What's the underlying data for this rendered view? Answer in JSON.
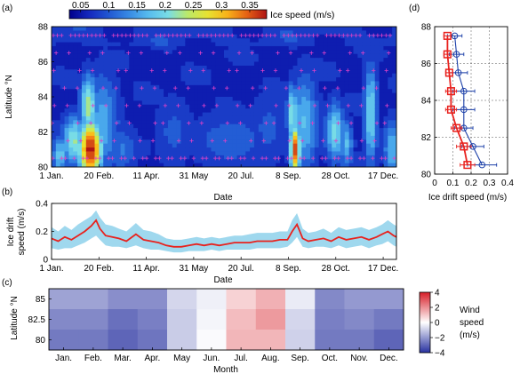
{
  "panels": {
    "a": "(a)",
    "b": "(b)",
    "c": "(c)",
    "d": "(d)"
  },
  "colorbar_top": {
    "label": "Ice speed (m/s)",
    "ticks": [
      "0.05",
      "0.1",
      "0.15",
      "0.2",
      "0.25",
      "0.3",
      "0.35"
    ]
  },
  "colorbar_wind": {
    "label_lines": [
      "Wind",
      "speed",
      "(m/s)"
    ],
    "ticks": [
      "4",
      "2",
      "0",
      "−2",
      "−4"
    ]
  },
  "colors": {
    "line_red": "#e8221e",
    "band_blue": "#9fd8ee",
    "profile_blue": "#1b3fa8",
    "profile_red": "#e8221e",
    "map_bg": "#2f5fb5",
    "marker_magenta": "#e040c8"
  },
  "chart_data": [
    {
      "id": "a",
      "type": "heatmap",
      "title": "",
      "xlabel": "Date",
      "ylabel": "Latitude °N",
      "x_ticks": [
        "1 Jan.",
        "20 Feb.",
        "11 Apr.",
        "31 May",
        "20 Jul.",
        "8 Sep.",
        "28 Oct.",
        "17 Dec."
      ],
      "x_tick_days": [
        1,
        51,
        101,
        151,
        201,
        251,
        301,
        351
      ],
      "y_ticks": [
        80,
        82,
        84,
        86,
        88
      ],
      "ylim": [
        80,
        88
      ],
      "xlim": [
        1,
        365
      ],
      "clim": [
        0.03,
        0.38
      ],
      "hotspots": [
        {
          "day": 42,
          "lat": 81.0,
          "value": 0.38,
          "sx": 9,
          "sy": 1.2
        },
        {
          "day": 40,
          "lat": 83.5,
          "value": 0.24,
          "sx": 6,
          "sy": 1.2
        },
        {
          "day": 25,
          "lat": 81.5,
          "value": 0.22,
          "sx": 9,
          "sy": 1.0
        },
        {
          "day": 10,
          "lat": 80.7,
          "value": 0.18,
          "sx": 6,
          "sy": 0.8
        },
        {
          "day": 55,
          "lat": 82.5,
          "value": 0.16,
          "sx": 12,
          "sy": 2.0
        },
        {
          "day": 75,
          "lat": 81.0,
          "value": 0.12,
          "sx": 12,
          "sy": 1.0
        },
        {
          "day": 258,
          "lat": 81.0,
          "value": 0.36,
          "sx": 4,
          "sy": 1.0
        },
        {
          "day": 255,
          "lat": 83.0,
          "value": 0.22,
          "sx": 4,
          "sy": 1.2
        },
        {
          "day": 268,
          "lat": 82.5,
          "value": 0.17,
          "sx": 10,
          "sy": 2.0
        },
        {
          "day": 300,
          "lat": 82.0,
          "value": 0.2,
          "sx": 7,
          "sy": 1.2
        },
        {
          "day": 312,
          "lat": 81.3,
          "value": 0.17,
          "sx": 5,
          "sy": 1.0
        },
        {
          "day": 338,
          "lat": 83.0,
          "value": 0.2,
          "sx": 5,
          "sy": 2.0
        },
        {
          "day": 360,
          "lat": 81.0,
          "value": 0.17,
          "sx": 6,
          "sy": 1.2
        },
        {
          "day": 190,
          "lat": 81.5,
          "value": 0.11,
          "sx": 30,
          "sy": 1.2
        },
        {
          "day": 130,
          "lat": 82.0,
          "value": 0.1,
          "sx": 15,
          "sy": 1.5
        },
        {
          "day": 230,
          "lat": 82.2,
          "value": 0.1,
          "sx": 15,
          "sy": 1.5
        }
      ]
    },
    {
      "id": "b",
      "type": "line",
      "title": "",
      "xlabel": "Date",
      "ylabel_lines": [
        "Ice drift",
        "speed (m/s)"
      ],
      "x_ticks": [
        "1 Jan.",
        "20 Feb.",
        "11 Apr.",
        "31 May",
        "20 Jul.",
        "8 Sep.",
        "28 Oct.",
        "17 Dec."
      ],
      "x_tick_days": [
        1,
        51,
        101,
        151,
        201,
        251,
        301,
        351
      ],
      "y_ticks": [
        "0",
        "0.2",
        "0.4"
      ],
      "ylim": [
        0,
        0.4
      ],
      "xlim": [
        1,
        365
      ],
      "x": [
        1,
        8,
        15,
        22,
        29,
        36,
        43,
        48,
        52,
        58,
        65,
        72,
        80,
        90,
        98,
        106,
        114,
        122,
        130,
        138,
        146,
        154,
        162,
        170,
        178,
        186,
        194,
        202,
        210,
        218,
        226,
        234,
        242,
        250,
        255,
        260,
        266,
        272,
        280,
        288,
        296,
        304,
        312,
        320,
        328,
        336,
        344,
        350,
        356,
        362,
        365
      ],
      "series": [
        {
          "values": [
            0.15,
            0.13,
            0.16,
            0.14,
            0.17,
            0.2,
            0.24,
            0.28,
            0.22,
            0.17,
            0.16,
            0.15,
            0.13,
            0.18,
            0.14,
            0.13,
            0.12,
            0.1,
            0.09,
            0.09,
            0.1,
            0.11,
            0.1,
            0.11,
            0.1,
            0.11,
            0.12,
            0.12,
            0.12,
            0.13,
            0.13,
            0.13,
            0.14,
            0.14,
            0.2,
            0.25,
            0.15,
            0.13,
            0.14,
            0.15,
            0.13,
            0.16,
            0.14,
            0.15,
            0.16,
            0.14,
            0.16,
            0.18,
            0.2,
            0.17,
            0.16
          ],
          "lower": [
            0.08,
            0.07,
            0.08,
            0.08,
            0.1,
            0.12,
            0.15,
            0.17,
            0.14,
            0.1,
            0.09,
            0.09,
            0.08,
            0.1,
            0.08,
            0.07,
            0.07,
            0.06,
            0.05,
            0.05,
            0.06,
            0.06,
            0.06,
            0.07,
            0.06,
            0.07,
            0.07,
            0.07,
            0.07,
            0.08,
            0.08,
            0.08,
            0.08,
            0.09,
            0.12,
            0.16,
            0.09,
            0.08,
            0.09,
            0.09,
            0.08,
            0.1,
            0.08,
            0.09,
            0.1,
            0.08,
            0.1,
            0.11,
            0.13,
            0.1,
            0.09
          ],
          "upper": [
            0.23,
            0.2,
            0.24,
            0.21,
            0.25,
            0.28,
            0.31,
            0.35,
            0.3,
            0.25,
            0.24,
            0.22,
            0.2,
            0.26,
            0.21,
            0.2,
            0.18,
            0.15,
            0.14,
            0.14,
            0.15,
            0.16,
            0.15,
            0.16,
            0.15,
            0.16,
            0.17,
            0.17,
            0.18,
            0.19,
            0.19,
            0.19,
            0.2,
            0.2,
            0.28,
            0.33,
            0.22,
            0.19,
            0.2,
            0.22,
            0.19,
            0.23,
            0.21,
            0.22,
            0.23,
            0.21,
            0.23,
            0.25,
            0.28,
            0.25,
            0.24
          ]
        }
      ]
    },
    {
      "id": "c",
      "type": "heatmap",
      "title": "",
      "xlabel": "Month",
      "ylabel": "Latitude °N",
      "categories": [
        "Jan.",
        "Feb.",
        "Mar.",
        "Apr.",
        "May",
        "Jun.",
        "Jul.",
        "Aug.",
        "Sep.",
        "Oct.",
        "Nov.",
        "Dec."
      ],
      "y_ticks": [
        "85",
        "82.5",
        "80"
      ],
      "clim": [
        -4,
        4
      ],
      "rows": [
        {
          "lat": 85,
          "values": [
            -1.8,
            -1.8,
            -2.2,
            -2.2,
            -0.8,
            -0.3,
            0.8,
            1.4,
            -0.4,
            -2.3,
            -2.0,
            -2.0
          ]
        },
        {
          "lat": 82.5,
          "values": [
            -2.3,
            -2.3,
            -2.8,
            -2.5,
            -1.0,
            -0.2,
            1.2,
            1.8,
            -0.8,
            -2.5,
            -2.3,
            -2.6
          ]
        },
        {
          "lat": 80,
          "values": [
            -2.6,
            -2.6,
            -3.0,
            -2.7,
            -1.0,
            -0.1,
            1.3,
            1.3,
            -0.9,
            -2.6,
            -2.6,
            -3.0
          ]
        }
      ]
    },
    {
      "id": "d",
      "type": "line",
      "title": "",
      "xlabel": "Ice drift speed (m/s)",
      "ylabel": "",
      "x_ticks": [
        "0",
        "0.1",
        "0.2",
        "0.3",
        "0.4"
      ],
      "y_ticks": [
        80,
        82,
        84,
        86,
        88
      ],
      "xlim": [
        0,
        0.4
      ],
      "ylim": [
        80,
        88
      ],
      "y": [
        80.5,
        81.5,
        82.5,
        83.5,
        84.5,
        85.5,
        86.5,
        87.5
      ],
      "series": [
        {
          "marker": "circle",
          "color": "blue",
          "values": [
            0.26,
            0.21,
            0.16,
            0.16,
            0.16,
            0.13,
            0.12,
            0.11
          ],
          "err": [
            0.08,
            0.06,
            0.05,
            0.06,
            0.06,
            0.05,
            0.04,
            0.04
          ]
        },
        {
          "marker": "square",
          "color": "red",
          "values": [
            0.18,
            0.16,
            0.12,
            0.09,
            0.09,
            0.08,
            0.07,
            0.07
          ],
          "err": [
            0.04,
            0.04,
            0.03,
            0.03,
            0.03,
            0.02,
            0.02,
            0.02
          ]
        }
      ]
    }
  ]
}
